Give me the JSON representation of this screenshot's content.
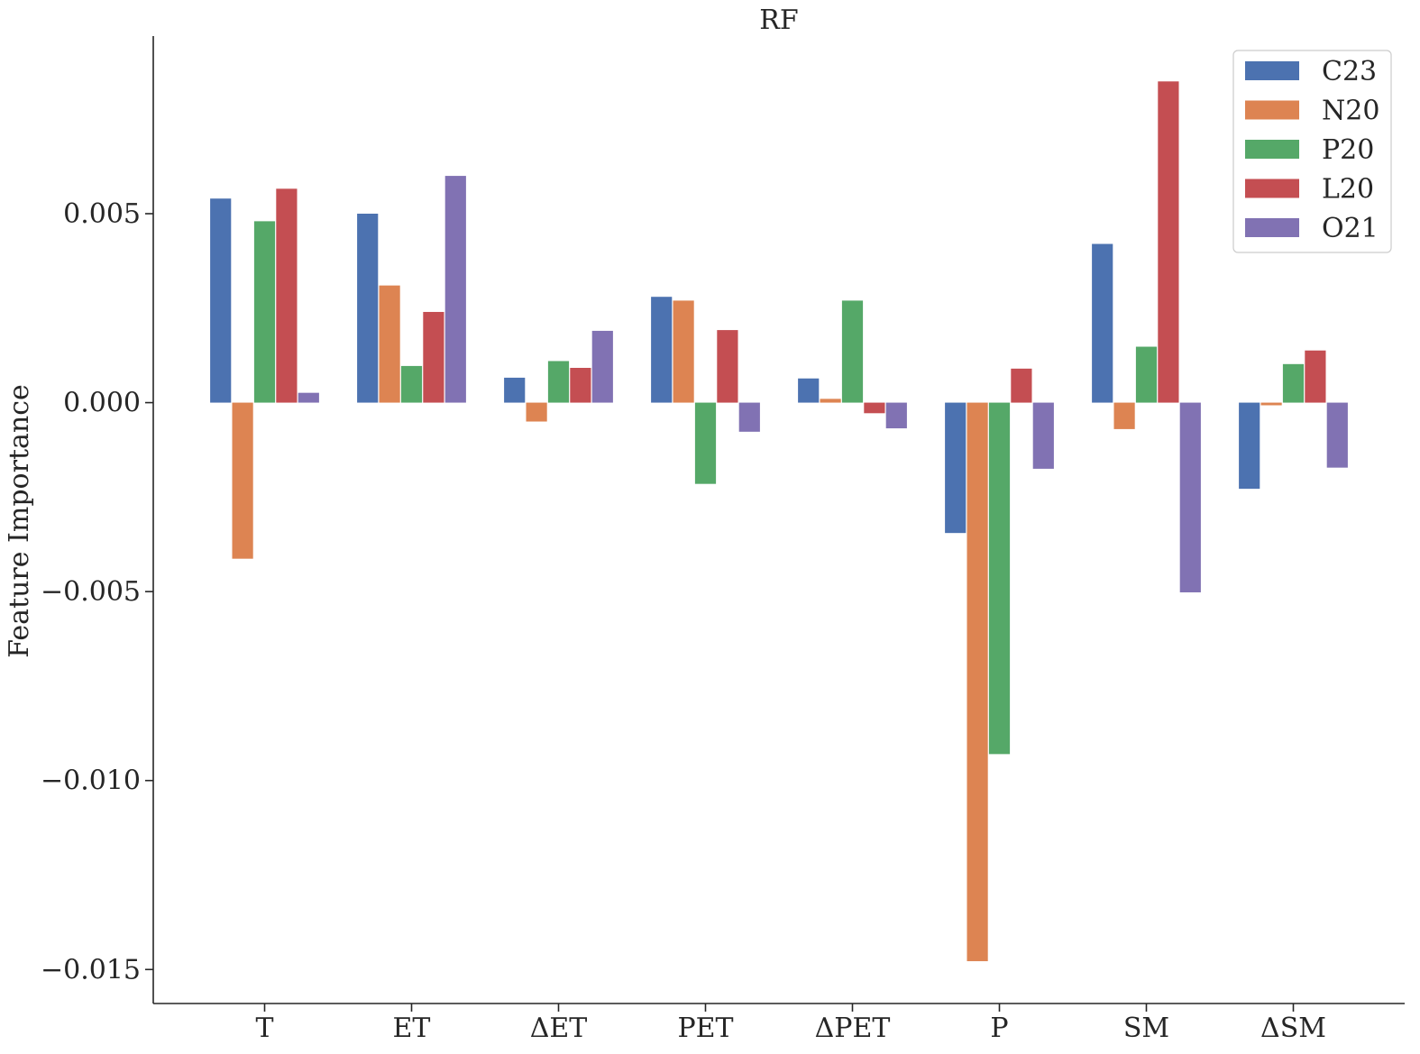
{
  "chart_data": {
    "type": "bar",
    "title": "RF",
    "xlabel": "",
    "ylabel": "Feature Importance",
    "categories": [
      "T",
      "ET",
      "ΔET",
      "PET",
      "ΔPET",
      "P",
      "SM",
      "ΔSM"
    ],
    "ylim": [
      -0.0159,
      0.0097
    ],
    "yticks": [
      {
        "value": 0.005,
        "label": "0.005"
      },
      {
        "value": 0.0,
        "label": "0.000"
      },
      {
        "value": -0.005,
        "label": "−0.005"
      },
      {
        "value": -0.01,
        "label": "−0.010"
      },
      {
        "value": -0.015,
        "label": "−0.015"
      }
    ],
    "grid": false,
    "legend_position": "top-right",
    "series": [
      {
        "name": "C23",
        "color": "#4c72b0",
        "values": [
          0.0054,
          0.005,
          0.00066,
          0.0028,
          0.00064,
          -0.00345,
          0.0042,
          -0.00228
        ]
      },
      {
        "name": "N20",
        "color": "#dd8452",
        "values": [
          -0.00413,
          0.0031,
          -0.0005,
          0.0027,
          0.0001,
          -0.01478,
          -0.0007,
          -7e-05
        ]
      },
      {
        "name": "P20",
        "color": "#55a868",
        "values": [
          0.0048,
          0.00097,
          0.0011,
          -0.00215,
          0.0027,
          -0.0093,
          0.00148,
          0.00102
        ]
      },
      {
        "name": "L20",
        "color": "#c44e52",
        "values": [
          0.00566,
          0.0024,
          0.00092,
          0.00192,
          -0.00028,
          0.0009,
          0.0085,
          0.00138
        ]
      },
      {
        "name": "O21",
        "color": "#8172b3",
        "values": [
          0.00026,
          0.006,
          0.0019,
          -0.00077,
          -0.00068,
          -0.00175,
          -0.00502,
          -0.00172
        ]
      }
    ]
  }
}
